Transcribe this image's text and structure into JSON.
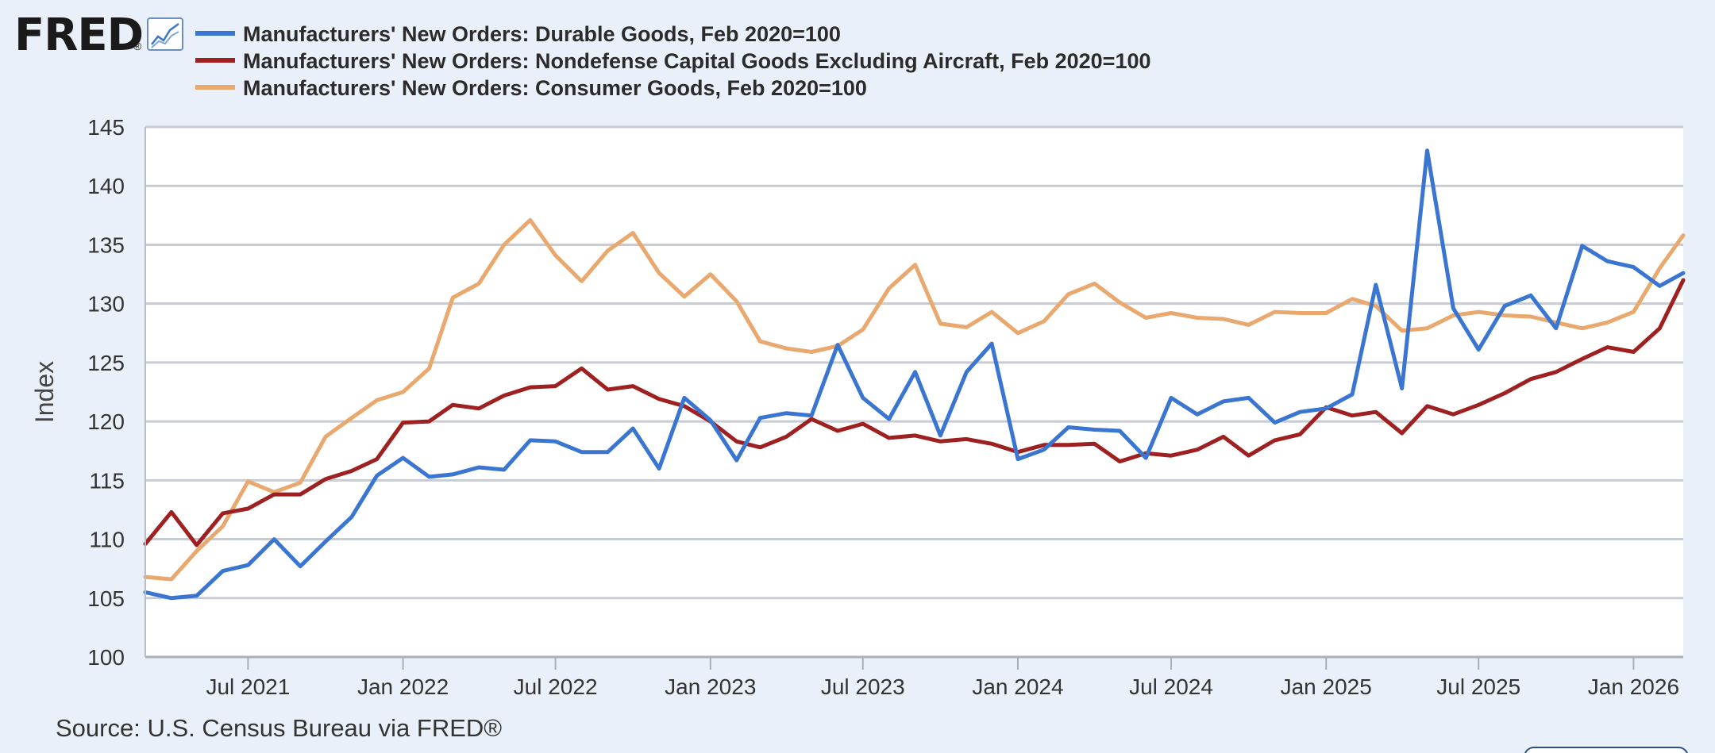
{
  "logo": {
    "text": "FRED",
    "mark": "®",
    "icon": "line-chart-icon"
  },
  "source": "Source: U.S. Census Bureau via FRED®",
  "chart_data": {
    "type": "line",
    "title": "",
    "xlabel": "",
    "ylabel": "Index",
    "ylim": [
      100,
      145
    ],
    "yticks": [
      100,
      105,
      110,
      115,
      120,
      125,
      130,
      135,
      140,
      145
    ],
    "xticks": [
      "Jul 2021",
      "Jan 2022",
      "Jul 2022",
      "Jan 2023",
      "Jul 2023",
      "Jan 2024",
      "Jul 2024",
      "Jan 2025",
      "Jul 2025",
      "Jan 2026"
    ],
    "grid": true,
    "legend_position": "top-left",
    "x": [
      "2021-03",
      "2021-04",
      "2021-05",
      "2021-06",
      "2021-07",
      "2021-08",
      "2021-09",
      "2021-10",
      "2021-11",
      "2021-12",
      "2022-01",
      "2022-02",
      "2022-03",
      "2022-04",
      "2022-05",
      "2022-06",
      "2022-07",
      "2022-08",
      "2022-09",
      "2022-10",
      "2022-11",
      "2022-12",
      "2023-01",
      "2023-02",
      "2023-03",
      "2023-04",
      "2023-05",
      "2023-06",
      "2023-07",
      "2023-08",
      "2023-09",
      "2023-10",
      "2023-11",
      "2023-12",
      "2024-01",
      "2024-02",
      "2024-03",
      "2024-04",
      "2024-05",
      "2024-06",
      "2024-07",
      "2024-08",
      "2024-09",
      "2024-10",
      "2024-11",
      "2024-12",
      "2025-01",
      "2025-02",
      "2025-03",
      "2025-04",
      "2025-05",
      "2025-06",
      "2025-07",
      "2025-08",
      "2025-09",
      "2025-10",
      "2025-11",
      "2025-12",
      "2026-01",
      "2026-02",
      "2026-03"
    ],
    "series": [
      {
        "name": "Manufacturers' New Orders: Durable Goods, Feb 2020=100",
        "color": "#3a76d1",
        "values": [
          105.5,
          105.0,
          105.2,
          107.3,
          107.8,
          110.0,
          107.7,
          109.8,
          111.9,
          115.4,
          116.9,
          115.3,
          115.5,
          116.1,
          115.9,
          118.4,
          118.3,
          117.4,
          117.4,
          119.4,
          116.0,
          122.0,
          120.1,
          116.7,
          120.3,
          120.7,
          120.5,
          126.5,
          122.0,
          120.2,
          124.2,
          118.8,
          124.2,
          126.6,
          116.8,
          117.6,
          119.5,
          119.3,
          119.2,
          116.9,
          122.0,
          120.6,
          121.7,
          122.0,
          119.9,
          120.8,
          121.1,
          122.3,
          131.6,
          122.8,
          143.0,
          129.6,
          126.1,
          129.8,
          130.7,
          127.9,
          134.9,
          133.6,
          133.1,
          131.5,
          132.6
        ]
      },
      {
        "name": "Manufacturers' New Orders: Nondefense Capital Goods Excluding Aircraft, Feb 2020=100",
        "color": "#9e2020",
        "values": [
          109.6,
          112.3,
          109.5,
          112.2,
          112.6,
          113.8,
          113.8,
          115.1,
          115.8,
          116.8,
          119.9,
          120.0,
          121.4,
          121.1,
          122.2,
          122.9,
          123.0,
          124.5,
          122.7,
          123.0,
          121.9,
          121.3,
          120.0,
          118.3,
          117.8,
          118.7,
          120.2,
          119.2,
          119.8,
          118.6,
          118.8,
          118.3,
          118.5,
          118.1,
          117.4,
          118.0,
          118.0,
          118.1,
          116.6,
          117.3,
          117.1,
          117.6,
          118.7,
          117.1,
          118.4,
          118.9,
          121.2,
          120.5,
          120.8,
          119.0,
          121.3,
          120.6,
          121.4,
          122.4,
          123.6,
          124.2,
          125.3,
          126.3,
          125.9,
          127.9,
          132.0
        ]
      },
      {
        "name": "Manufacturers' New Orders: Consumer Goods, Feb 2020=100",
        "color": "#e8a86e",
        "values": [
          106.8,
          106.6,
          109.0,
          111.1,
          114.9,
          114.0,
          114.8,
          118.7,
          120.3,
          121.8,
          122.5,
          124.5,
          130.5,
          131.7,
          135.0,
          137.1,
          134.1,
          131.9,
          134.5,
          136.0,
          132.6,
          130.6,
          132.5,
          130.2,
          126.8,
          126.2,
          125.9,
          126.4,
          127.8,
          131.3,
          133.3,
          128.3,
          128.0,
          129.3,
          127.5,
          128.5,
          130.8,
          131.7,
          130.1,
          128.8,
          129.2,
          128.8,
          128.7,
          128.2,
          129.3,
          129.2,
          129.2,
          130.4,
          129.8,
          127.7,
          127.9,
          129.0,
          129.3,
          129.0,
          128.9,
          128.4,
          127.9,
          128.4,
          129.3,
          133.0,
          135.8
        ]
      }
    ]
  }
}
